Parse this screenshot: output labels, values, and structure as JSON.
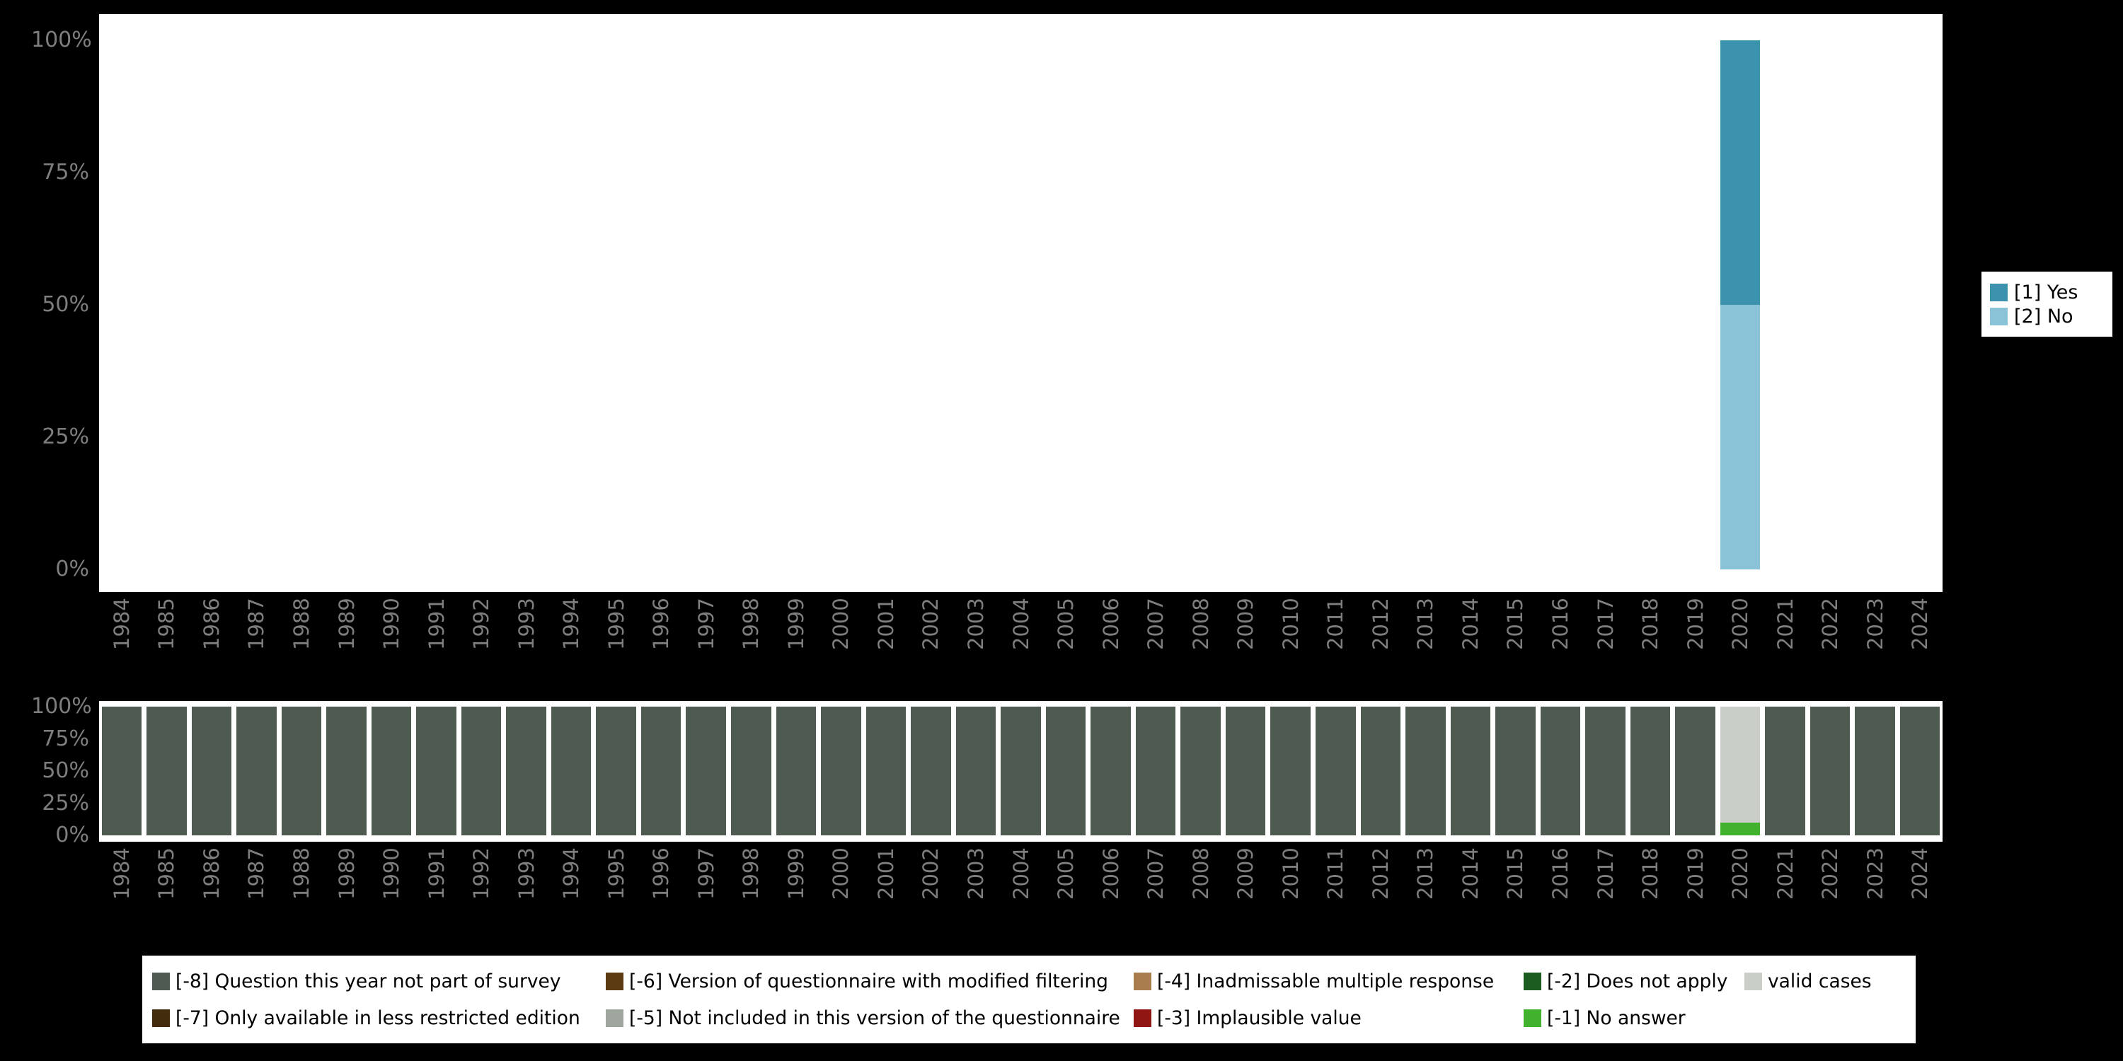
{
  "page": {
    "background": "#000000",
    "axis_text_color": "#7e7e7e"
  },
  "chart_data": [
    {
      "type": "bar",
      "stacked": true,
      "units": "percent",
      "title": "",
      "xlabel": "",
      "ylabel": "",
      "ylim": [
        0,
        100
      ],
      "grid": false,
      "legend_position": "right",
      "x": [
        "1984",
        "1985",
        "1986",
        "1987",
        "1988",
        "1989",
        "1990",
        "1991",
        "1992",
        "1993",
        "1994",
        "1995",
        "1996",
        "1997",
        "1998",
        "1999",
        "2000",
        "2001",
        "2002",
        "2003",
        "2004",
        "2005",
        "2006",
        "2007",
        "2008",
        "2009",
        "2010",
        "2011",
        "2012",
        "2013",
        "2014",
        "2015",
        "2016",
        "2017",
        "2018",
        "2019",
        "2020",
        "2021",
        "2022",
        "2023",
        "2024"
      ],
      "ytick_labels": [
        "0%",
        "25%",
        "50%",
        "75%",
        "100%"
      ],
      "series": [
        {
          "name": "[2] No",
          "color": "#8ac3d7",
          "values": [
            0,
            0,
            0,
            0,
            0,
            0,
            0,
            0,
            0,
            0,
            0,
            0,
            0,
            0,
            0,
            0,
            0,
            0,
            0,
            0,
            0,
            0,
            0,
            0,
            0,
            0,
            0,
            0,
            0,
            0,
            0,
            0,
            0,
            0,
            0,
            0,
            50,
            0,
            0,
            0,
            0
          ]
        },
        {
          "name": "[1] Yes",
          "color": "#3d93ad",
          "values": [
            0,
            0,
            0,
            0,
            0,
            0,
            0,
            0,
            0,
            0,
            0,
            0,
            0,
            0,
            0,
            0,
            0,
            0,
            0,
            0,
            0,
            0,
            0,
            0,
            0,
            0,
            0,
            0,
            0,
            0,
            0,
            0,
            0,
            0,
            0,
            0,
            50,
            0,
            0,
            0,
            0
          ]
        }
      ],
      "legend": [
        {
          "label": "[1] Yes",
          "color": "#3d93ad"
        },
        {
          "label": "[2] No",
          "color": "#8ac3d7"
        }
      ]
    },
    {
      "type": "bar",
      "stacked": true,
      "units": "percent",
      "title": "",
      "xlabel": "",
      "ylabel": "",
      "ylim": [
        0,
        100
      ],
      "grid": false,
      "legend_position": "bottom",
      "x": [
        "1984",
        "1985",
        "1986",
        "1987",
        "1988",
        "1989",
        "1990",
        "1991",
        "1992",
        "1993",
        "1994",
        "1995",
        "1996",
        "1997",
        "1998",
        "1999",
        "2000",
        "2001",
        "2002",
        "2003",
        "2004",
        "2005",
        "2006",
        "2007",
        "2008",
        "2009",
        "2010",
        "2011",
        "2012",
        "2013",
        "2014",
        "2015",
        "2016",
        "2017",
        "2018",
        "2019",
        "2020",
        "2021",
        "2022",
        "2023",
        "2024"
      ],
      "ytick_labels": [
        "0%",
        "25%",
        "50%",
        "75%",
        "100%"
      ],
      "series": [
        {
          "name": "[-8] Question this year not part of survey",
          "color": "#4f5a51",
          "values": [
            100,
            100,
            100,
            100,
            100,
            100,
            100,
            100,
            100,
            100,
            100,
            100,
            100,
            100,
            100,
            100,
            100,
            100,
            100,
            100,
            100,
            100,
            100,
            100,
            100,
            100,
            100,
            100,
            100,
            100,
            100,
            100,
            100,
            100,
            100,
            100,
            0,
            100,
            100,
            100,
            100
          ]
        },
        {
          "name": "[-1] No answer",
          "color": "#41b12e",
          "values": [
            0,
            0,
            0,
            0,
            0,
            0,
            0,
            0,
            0,
            0,
            0,
            0,
            0,
            0,
            0,
            0,
            0,
            0,
            0,
            0,
            0,
            0,
            0,
            0,
            0,
            0,
            0,
            0,
            0,
            0,
            0,
            0,
            0,
            0,
            0,
            0,
            10,
            0,
            0,
            0,
            0
          ]
        },
        {
          "name": "valid cases",
          "color": "#c9cec6",
          "values": [
            0,
            0,
            0,
            0,
            0,
            0,
            0,
            0,
            0,
            0,
            0,
            0,
            0,
            0,
            0,
            0,
            0,
            0,
            0,
            0,
            0,
            0,
            0,
            0,
            0,
            0,
            0,
            0,
            0,
            0,
            0,
            0,
            0,
            0,
            0,
            0,
            90,
            0,
            0,
            0,
            0
          ]
        }
      ],
      "legend": [
        {
          "label": "[-8] Question this year not part of survey",
          "color": "#4f5a51"
        },
        {
          "label": "[-7] Only available in less restricted edition",
          "color": "#432c0e"
        },
        {
          "label": "[-6] Version of questionnaire with modified filtering",
          "color": "#5c3a12"
        },
        {
          "label": "[-5] Not included in this version of the questionnaire",
          "color": "#9fa69d"
        },
        {
          "label": "[-4] Inadmissable multiple response",
          "color": "#aa7d4e"
        },
        {
          "label": "[-3] Implausible value",
          "color": "#8f1612"
        },
        {
          "label": "[-2] Does not apply",
          "color": "#1d5c21"
        },
        {
          "label": "[-1] No answer",
          "color": "#41b12e"
        },
        {
          "label": "valid cases",
          "color": "#c9cec6"
        }
      ]
    }
  ]
}
